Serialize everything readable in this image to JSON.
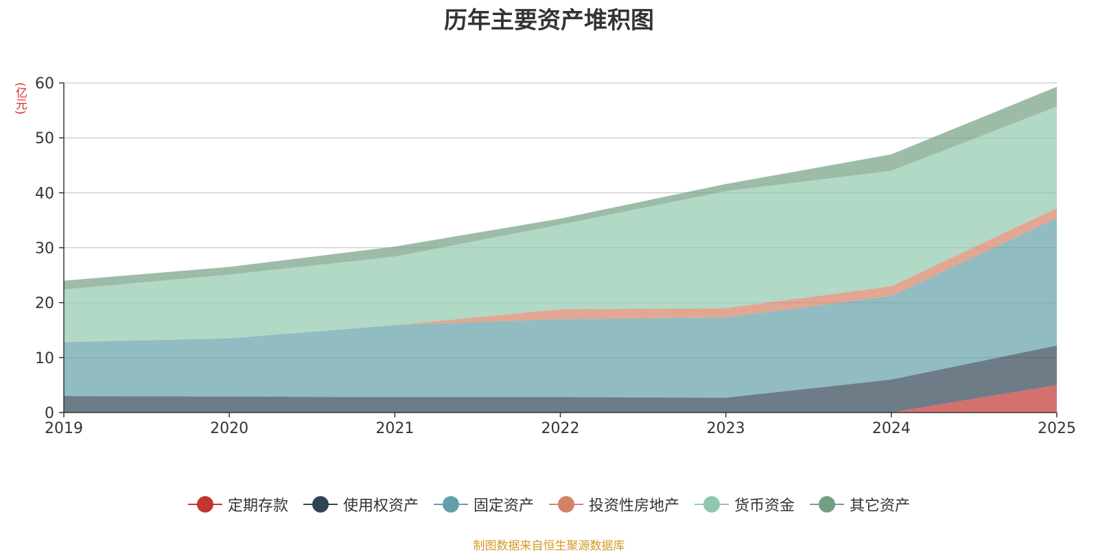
{
  "chart_data": {
    "type": "area",
    "stacked": true,
    "title": "历年主要资产堆积图",
    "unit_label": "(亿元)",
    "x": [
      "2019",
      "2020",
      "2021",
      "2022",
      "2023",
      "2024",
      "2025"
    ],
    "ylim": [
      0,
      60
    ],
    "yticks": [
      0,
      10,
      20,
      30,
      40,
      50,
      60
    ],
    "grid": true,
    "legend_position": "bottom",
    "series": [
      {
        "name": "定期存款",
        "color": "#c23531",
        "values": [
          0,
          0,
          0,
          0,
          0,
          0,
          5.0
        ]
      },
      {
        "name": "使用权资产",
        "color": "#2f4554",
        "values": [
          3.0,
          2.9,
          2.8,
          2.8,
          2.7,
          6.0,
          7.2
        ]
      },
      {
        "name": "固定资产",
        "color": "#61a0a8",
        "values": [
          9.8,
          10.6,
          13.1,
          14.2,
          14.6,
          15.2,
          23.2
        ]
      },
      {
        "name": "投资性房地产",
        "color": "#d48265",
        "values": [
          0,
          0,
          0,
          1.8,
          1.7,
          1.8,
          1.8
        ]
      },
      {
        "name": "货币资金",
        "color": "#91c7ae",
        "values": [
          9.6,
          11.6,
          12.5,
          15.4,
          21.3,
          21.0,
          18.5
        ]
      },
      {
        "name": "其它资产",
        "color": "#749f83",
        "values": [
          1.6,
          1.4,
          1.8,
          1.1,
          1.3,
          3.0,
          3.6
        ]
      }
    ]
  },
  "source_text": "制图数据来自恒生聚源数据库"
}
